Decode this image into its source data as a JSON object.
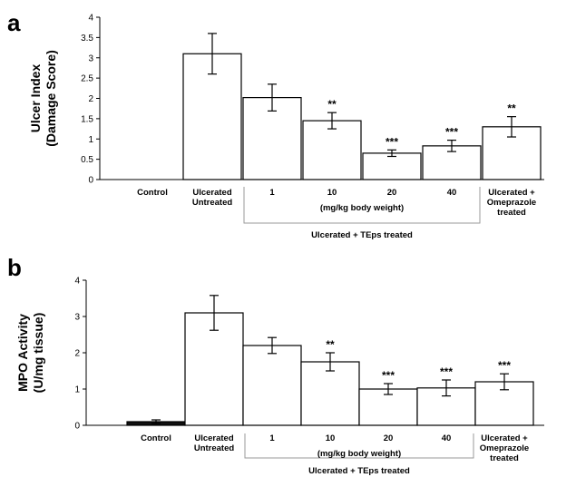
{
  "chart_data": [
    {
      "panel": "a",
      "type": "bar",
      "ylabel": [
        "Ulcer Index",
        "(Damage Score)"
      ],
      "ylim": [
        0,
        4
      ],
      "yticks": [
        "0",
        "0.5",
        "1",
        "1.5",
        "2",
        "2.5",
        "3",
        "3.5",
        "4"
      ],
      "yticks_values": [
        0,
        0.5,
        1,
        1.5,
        2,
        2.5,
        3,
        3.5,
        4
      ],
      "categories": [
        [
          "Control"
        ],
        [
          "Ulcerated",
          "Untreated"
        ],
        [
          "1"
        ],
        [
          "10"
        ],
        [
          "20"
        ],
        [
          "40"
        ],
        [
          "Ulcerated +",
          "Omeprazole",
          "treated"
        ]
      ],
      "values": [
        0,
        3.1,
        2.02,
        1.45,
        0.65,
        0.83,
        1.3
      ],
      "errors": [
        0,
        0.5,
        0.33,
        0.2,
        0.08,
        0.14,
        0.25
      ],
      "significance": [
        "",
        "",
        "",
        "**",
        "***",
        "***",
        "**"
      ],
      "bar_fill": [
        "#ffffff",
        "#ffffff",
        "#ffffff",
        "#ffffff",
        "#ffffff",
        "#ffffff",
        "#ffffff"
      ],
      "bracket_inner_label": "(mg/kg body weight)",
      "bracket_group_label": "Ulcerated + TEps treated",
      "grid": false
    },
    {
      "panel": "b",
      "type": "bar",
      "ylabel": [
        "MPO Activity",
        "(U/mg tissue)"
      ],
      "ylim": [
        0,
        4
      ],
      "yticks": [
        "0",
        "1",
        "2",
        "3",
        "4"
      ],
      "yticks_values": [
        0,
        1,
        2,
        3,
        4
      ],
      "categories": [
        [
          "Control"
        ],
        [
          "Ulcerated",
          "Untreated"
        ],
        [
          "1"
        ],
        [
          "10"
        ],
        [
          "20"
        ],
        [
          "40"
        ],
        [
          "Ulcerated +",
          "Omeprazole",
          "treated"
        ]
      ],
      "values": [
        0.1,
        3.1,
        2.2,
        1.75,
        1.0,
        1.03,
        1.2
      ],
      "errors": [
        0.05,
        0.48,
        0.22,
        0.25,
        0.15,
        0.22,
        0.22
      ],
      "significance": [
        "",
        "",
        "",
        "**",
        "***",
        "***",
        "***"
      ],
      "bar_fill": [
        "#111111",
        "#ffffff",
        "#ffffff",
        "#ffffff",
        "#ffffff",
        "#ffffff",
        "#ffffff"
      ],
      "bracket_inner_label": "(mg/kg body weight)",
      "bracket_group_label": "Ulcerated + TEps treated",
      "grid": false
    }
  ]
}
